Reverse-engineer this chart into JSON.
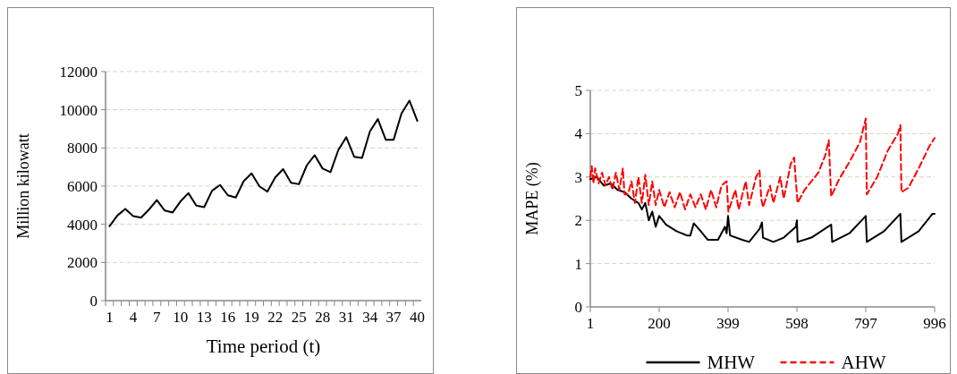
{
  "chart_data": [
    {
      "type": "line",
      "xlabel": "Time period (t)",
      "ylabel": "Million kilowatt",
      "categories": [
        "1",
        null,
        null,
        "4",
        null,
        null,
        "7",
        null,
        null,
        "10",
        null,
        null,
        "13",
        null,
        null,
        "16",
        null,
        null,
        "19",
        null,
        null,
        "22",
        null,
        null,
        "25",
        null,
        null,
        "28",
        null,
        null,
        "31",
        null,
        null,
        "34",
        null,
        null,
        "37",
        null,
        null,
        "40"
      ],
      "series": [
        {
          "color": "#000000",
          "values": [
            3900,
            4460,
            4800,
            4430,
            4350,
            4770,
            5270,
            4720,
            4620,
            5200,
            5630,
            4980,
            4900,
            5760,
            6060,
            5520,
            5400,
            6260,
            6670,
            5990,
            5710,
            6460,
            6890,
            6180,
            6100,
            7090,
            7620,
            6920,
            6730,
            7900,
            8560,
            7540,
            7480,
            8870,
            9510,
            8430,
            8430,
            9810,
            10480,
            9420
          ]
        }
      ],
      "ylim": [
        0,
        12000
      ],
      "yticks": [
        0,
        2000,
        4000,
        6000,
        8000,
        10000,
        12000
      ],
      "grid": "y",
      "legend": false
    },
    {
      "type": "line",
      "ylabel": "MAPE (%)",
      "xlim": [
        1,
        996
      ],
      "xticks": [
        1,
        200,
        399,
        598,
        797,
        996
      ],
      "ylim": [
        0,
        5
      ],
      "yticks": [
        0,
        1,
        2,
        3,
        4,
        5
      ],
      "grid": "y",
      "legend": "bottom",
      "series": [
        {
          "name": "MHW",
          "color": "#000000",
          "line_style": "solid",
          "x": [
            1,
            20,
            40,
            60,
            80,
            100,
            120,
            140,
            150,
            160,
            170,
            180,
            190,
            200,
            220,
            250,
            280,
            290,
            300,
            320,
            340,
            370,
            390,
            395,
            399,
            405,
            440,
            460,
            490,
            497,
            500,
            530,
            560,
            595,
            598,
            600,
            640,
            697,
            700,
            750,
            797,
            800,
            850,
            897,
            900,
            950,
            990,
            996
          ],
          "values": [
            2.95,
            3.0,
            2.8,
            2.85,
            2.7,
            2.65,
            2.5,
            2.4,
            2.25,
            2.4,
            2.0,
            2.2,
            1.85,
            2.1,
            1.9,
            1.75,
            1.65,
            1.65,
            1.93,
            1.75,
            1.55,
            1.55,
            1.85,
            1.7,
            2.1,
            1.65,
            1.55,
            1.5,
            1.8,
            1.95,
            1.6,
            1.5,
            1.6,
            1.85,
            2.0,
            1.5,
            1.6,
            1.9,
            1.5,
            1.7,
            2.1,
            1.5,
            1.75,
            2.15,
            1.5,
            1.75,
            2.15,
            2.15
          ]
        },
        {
          "name": "AHW",
          "color": "#ff0000",
          "line_style": "dashed",
          "x": [
            1,
            5,
            10,
            15,
            25,
            35,
            45,
            55,
            65,
            75,
            85,
            95,
            100,
            110,
            120,
            130,
            140,
            150,
            160,
            170,
            180,
            190,
            200,
            215,
            230,
            245,
            260,
            275,
            290,
            305,
            320,
            335,
            350,
            365,
            380,
            395,
            400,
            420,
            430,
            450,
            460,
            480,
            490,
            495,
            500,
            520,
            530,
            550,
            560,
            580,
            590,
            595,
            600,
            620,
            640,
            660,
            680,
            690,
            697,
            720,
            750,
            780,
            797,
            800,
            830,
            860,
            890,
            897,
            900,
            920,
            950,
            980,
            996
          ],
          "values": [
            3.0,
            3.25,
            2.85,
            3.2,
            2.85,
            3.1,
            2.8,
            3.0,
            2.7,
            3.1,
            2.7,
            3.2,
            2.6,
            2.6,
            2.9,
            2.4,
            3.0,
            2.4,
            3.05,
            2.35,
            2.9,
            2.35,
            2.7,
            2.3,
            2.65,
            2.3,
            2.65,
            2.25,
            2.6,
            2.3,
            2.6,
            2.25,
            2.7,
            2.3,
            2.8,
            2.9,
            2.2,
            2.7,
            2.25,
            2.9,
            2.35,
            3.0,
            3.15,
            2.5,
            2.3,
            2.8,
            2.4,
            3.0,
            2.5,
            3.3,
            3.45,
            2.9,
            2.4,
            2.7,
            2.9,
            3.1,
            3.5,
            3.85,
            2.55,
            2.95,
            3.35,
            3.8,
            4.35,
            2.6,
            3.0,
            3.6,
            4.0,
            4.2,
            2.65,
            2.75,
            3.2,
            3.7,
            3.9
          ]
        }
      ]
    }
  ]
}
